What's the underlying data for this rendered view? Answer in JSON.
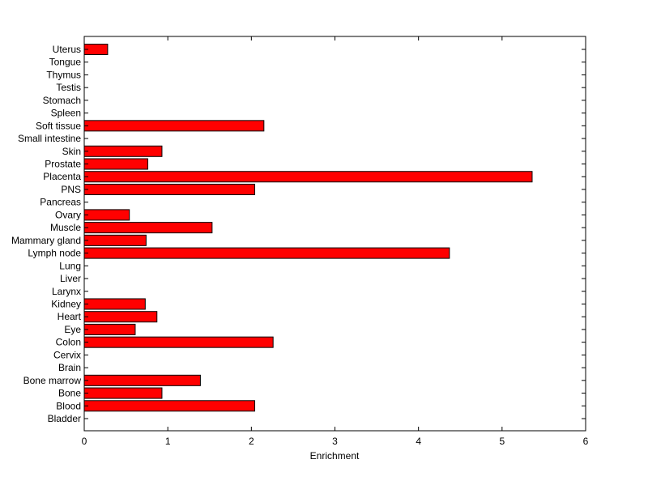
{
  "chart_data": {
    "type": "bar",
    "orientation": "horizontal",
    "title": "",
    "xlabel": "Enrichment",
    "ylabel": "",
    "xlim": [
      0,
      6
    ],
    "x_ticks": [
      "0",
      "1",
      "2",
      "3",
      "4",
      "5",
      "6"
    ],
    "grid": false,
    "legend": "none",
    "bar_color": "#ff0000",
    "bar_edge_color": "#000000",
    "categories": [
      "Bladder",
      "Blood",
      "Bone",
      "Bone marrow",
      "Brain",
      "Cervix",
      "Colon",
      "Eye",
      "Heart",
      "Kidney",
      "Larynx",
      "Liver",
      "Lung",
      "Lymph node",
      "Mammary gland",
      "Muscle",
      "Ovary",
      "Pancreas",
      "PNS",
      "Placenta",
      "Prostate",
      "Skin",
      "Small intestine",
      "Soft tissue",
      "Spleen",
      "Stomach",
      "Testis",
      "Thymus",
      "Tongue",
      "Uterus"
    ],
    "values": [
      0,
      2.04,
      0.93,
      1.39,
      0,
      0,
      2.26,
      0.61,
      0.87,
      0.73,
      0,
      0,
      0,
      4.37,
      0.74,
      1.53,
      0.54,
      0,
      2.04,
      5.36,
      0.76,
      0.93,
      0,
      2.15,
      0,
      0,
      0,
      0,
      0,
      0.28
    ]
  }
}
